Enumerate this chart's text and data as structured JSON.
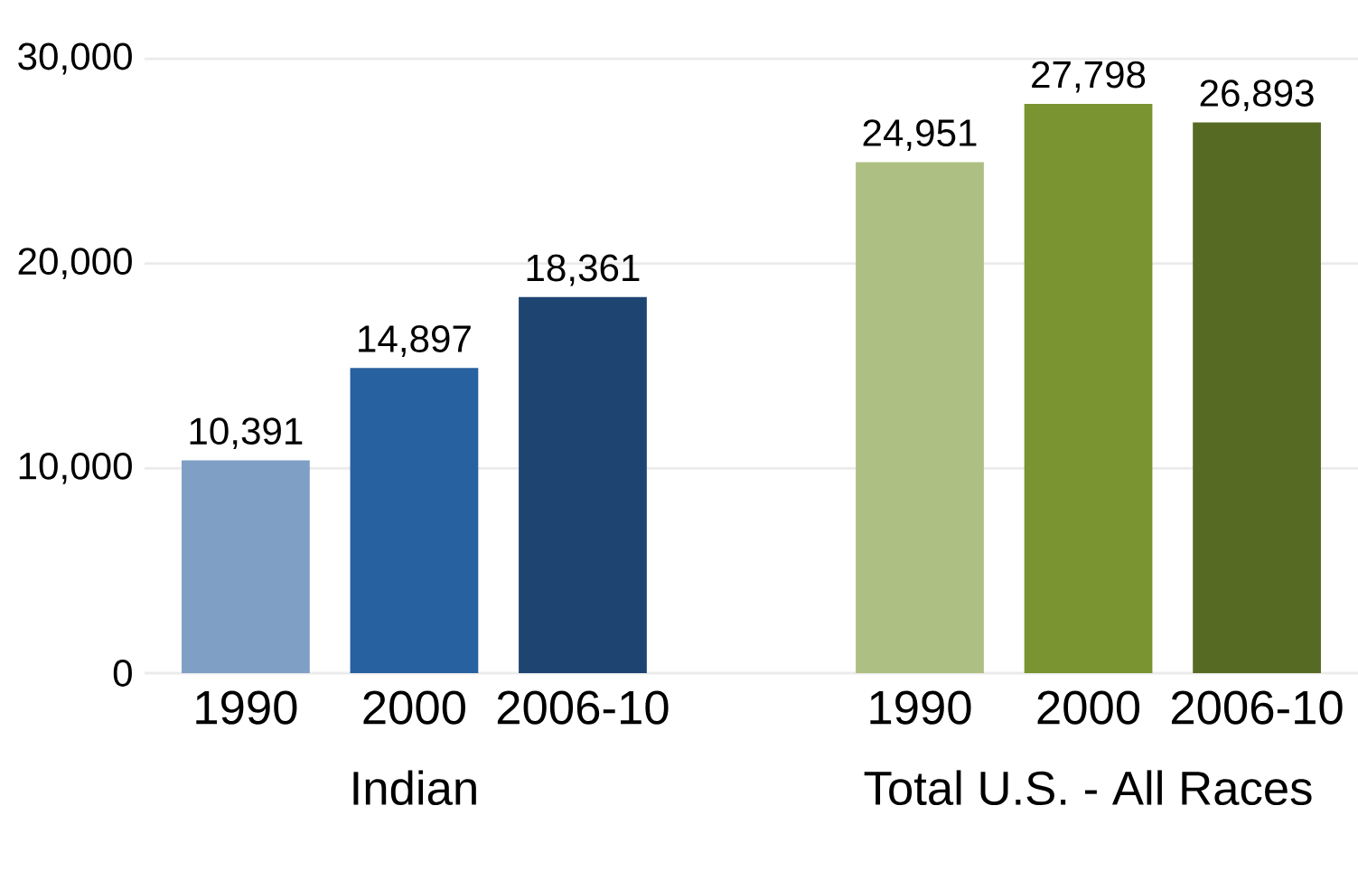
{
  "chart_data": {
    "type": "bar",
    "categories": [
      "1990",
      "2000",
      "2006-10",
      null,
      "1990",
      "2000",
      "2006-10"
    ],
    "values": [
      10391,
      14897,
      18361,
      null,
      24951,
      27798,
      26893
    ],
    "colors": [
      "#7f9fc4",
      "#2861a0",
      "#1e4471",
      null,
      "#adbf83",
      "#7a9431",
      "#566a23"
    ],
    "value_labels": [
      "10,391",
      "14,897",
      "18,361",
      null,
      "24,951",
      "27,798",
      "26,893"
    ],
    "ylim": [
      0,
      30000
    ],
    "yticks": [
      0,
      {
        "value": 10000,
        "label": "10,000"
      },
      {
        "value": 20000,
        "label": "20,000"
      },
      {
        "value": 30000,
        "label": "30,000"
      }
    ],
    "grid": "y",
    "annotations": [
      "Indian",
      "Total U.S. - All Races"
    ]
  }
}
